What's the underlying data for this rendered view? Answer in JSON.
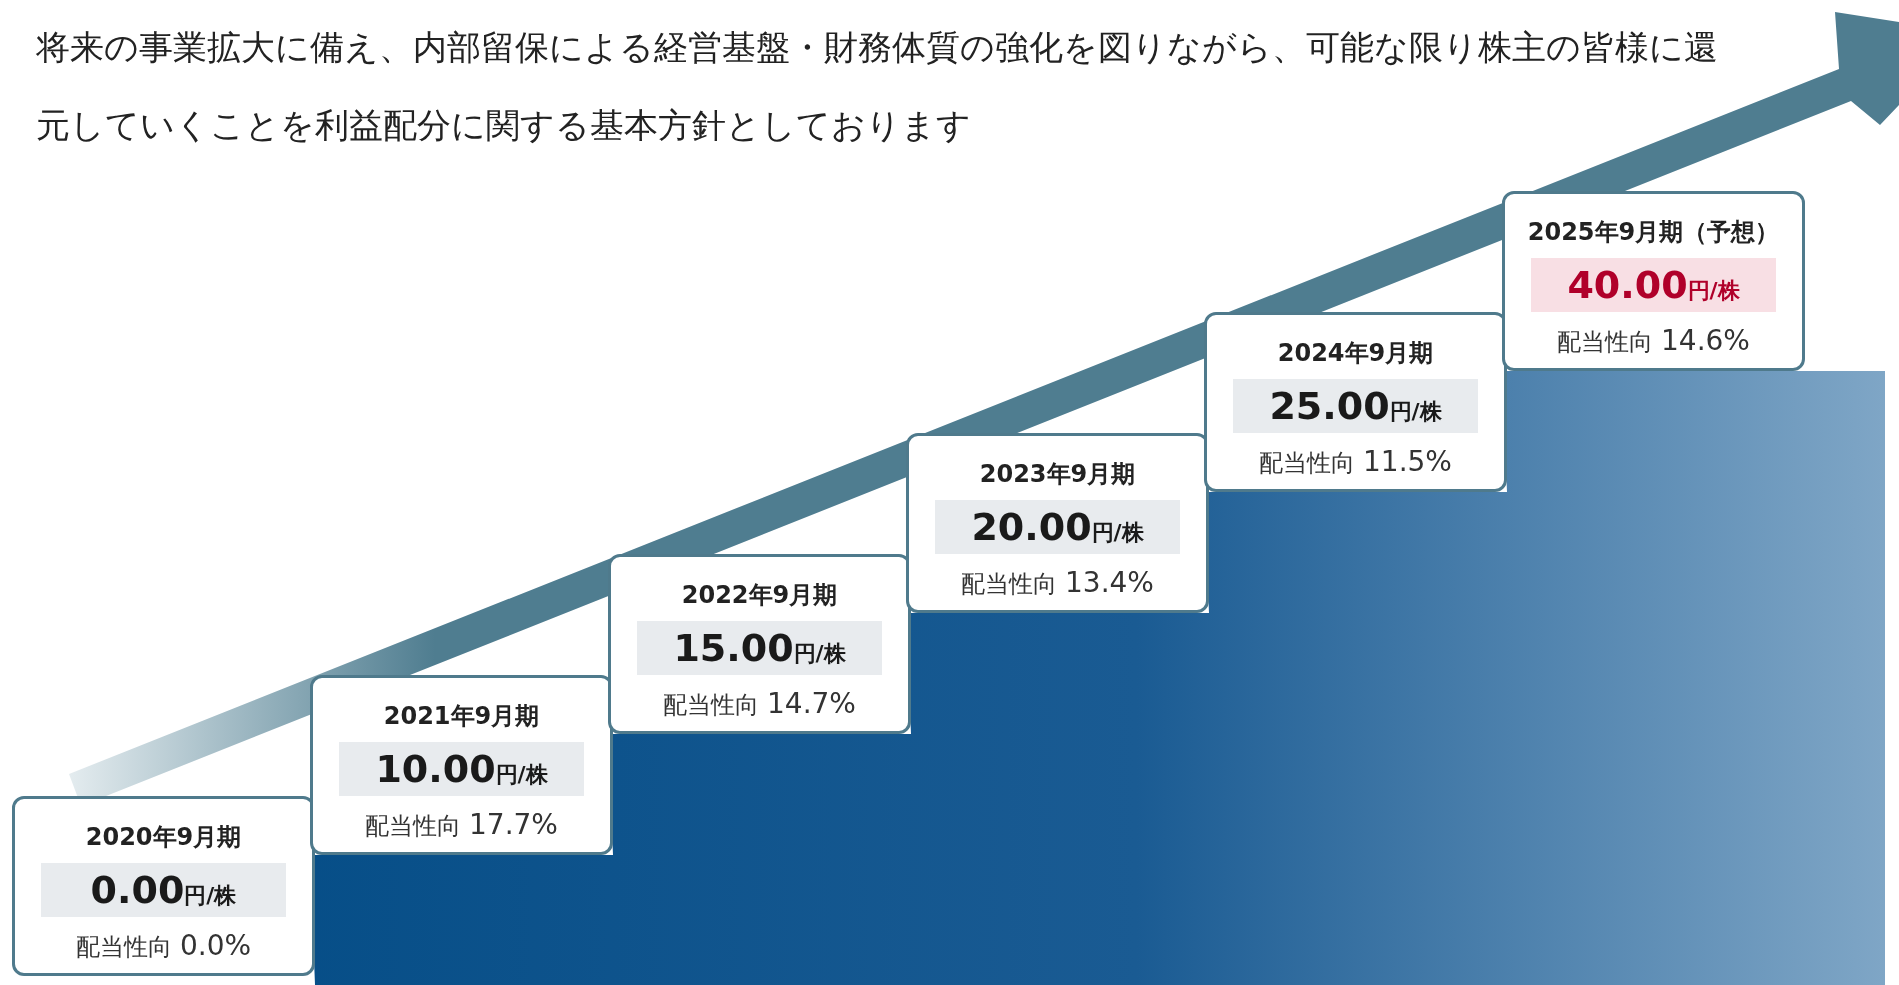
{
  "chart_data": {
    "type": "other",
    "title": "将来の事業拡大に備え、内部留保による経営基盤・財務体質の強化を図りながら、可能な限り株主の皆様に還元していくことを利益配分に関する基本方針としております",
    "categories": [
      "2020年9月期",
      "2021年9月期",
      "2022年9月期",
      "2023年9月期",
      "2024年9月期",
      "2025年9月期（予想）"
    ],
    "series": [
      {
        "values": [
          0,
          10,
          15,
          20,
          25,
          40
        ],
        "value_labels": [
          "0.00円/株",
          "10.00円/株",
          "15.00円/株",
          "20.00円/株",
          "25.00円/株",
          "40.00円/株"
        ],
        "colors": [
          "#e8ebee",
          "#e8ebee",
          "#e8ebee",
          "#e8ebee",
          "#e8ebee",
          "#f8dfe4"
        ]
      },
      {
        "name": "配当性向",
        "values": [
          0.0,
          17.7,
          14.7,
          13.4,
          11.5,
          14.6
        ],
        "value_labels": [
          "0.0%",
          "17.7%",
          "14.7%",
          "13.4%",
          "11.5%",
          "14.6%"
        ]
      }
    ]
  }
}
